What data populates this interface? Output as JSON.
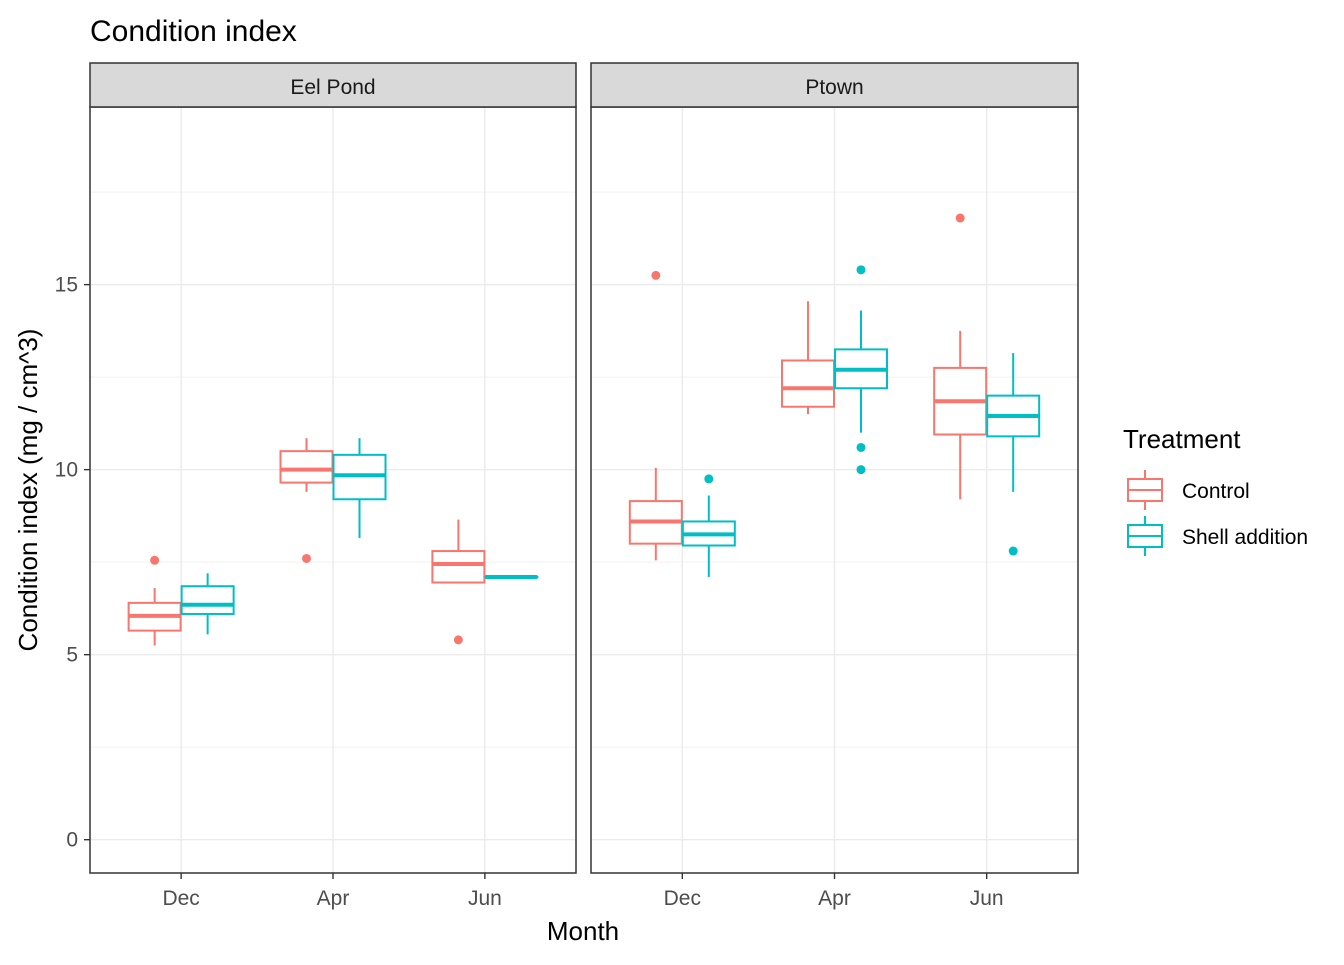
{
  "chart_data": {
    "type": "box",
    "title": "Condition index",
    "xlabel": "Month",
    "ylabel": "Condition index (mg / cm^3)",
    "ylim": [
      -0.9,
      19.8
    ],
    "yticks": [
      0,
      5,
      10,
      15
    ],
    "ytick_labels": [
      "0",
      "5",
      "10",
      "15"
    ],
    "categories": [
      "Dec",
      "Apr",
      "Jun"
    ],
    "grid": true,
    "legend": {
      "title": "Treatment",
      "position": "right",
      "entries": [
        {
          "label": "Control",
          "color": "#F8766D"
        },
        {
          "label": "Shell addition",
          "color": "#00BFC4"
        }
      ]
    },
    "panels": [
      {
        "label": "Eel Pond",
        "series": [
          {
            "name": "Control",
            "color": "#F8766D",
            "boxes": [
              {
                "category": "Dec",
                "lower": 5.25,
                "q1": 5.65,
                "median": 6.05,
                "q3": 6.4,
                "upper": 6.8,
                "outliers": [
                  7.55
                ]
              },
              {
                "category": "Apr",
                "lower": 9.4,
                "q1": 9.65,
                "median": 10.0,
                "q3": 10.5,
                "upper": 10.85,
                "outliers": [
                  7.6
                ]
              },
              {
                "category": "Jun",
                "lower": 6.95,
                "q1": 6.95,
                "median": 7.45,
                "q3": 7.8,
                "upper": 8.65,
                "outliers": [
                  5.4
                ]
              }
            ]
          },
          {
            "name": "Shell addition",
            "color": "#00BFC4",
            "boxes": [
              {
                "category": "Dec",
                "lower": 5.55,
                "q1": 6.1,
                "median": 6.35,
                "q3": 6.85,
                "upper": 7.2,
                "outliers": []
              },
              {
                "category": "Apr",
                "lower": 8.15,
                "q1": 9.2,
                "median": 9.85,
                "q3": 10.4,
                "upper": 10.85,
                "outliers": []
              },
              {
                "category": "Jun",
                "lower": 7.1,
                "q1": 7.1,
                "median": 7.1,
                "q3": 7.1,
                "upper": 7.1,
                "outliers": []
              }
            ]
          }
        ]
      },
      {
        "label": "Ptown",
        "series": [
          {
            "name": "Control",
            "color": "#F8766D",
            "boxes": [
              {
                "category": "Dec",
                "lower": 7.55,
                "q1": 8.0,
                "median": 8.6,
                "q3": 9.15,
                "upper": 10.05,
                "outliers": [
                  15.25
                ]
              },
              {
                "category": "Apr",
                "lower": 11.5,
                "q1": 11.7,
                "median": 12.2,
                "q3": 12.95,
                "upper": 14.55,
                "outliers": []
              },
              {
                "category": "Jun",
                "lower": 9.2,
                "q1": 10.95,
                "median": 11.85,
                "q3": 12.75,
                "upper": 13.75,
                "outliers": [
                  16.8
                ]
              }
            ]
          },
          {
            "name": "Shell addition",
            "color": "#00BFC4",
            "boxes": [
              {
                "category": "Dec",
                "lower": 7.1,
                "q1": 7.95,
                "median": 8.25,
                "q3": 8.6,
                "upper": 9.3,
                "outliers": [
                  9.75
                ]
              },
              {
                "category": "Apr",
                "lower": 11.0,
                "q1": 12.2,
                "median": 12.7,
                "q3": 13.25,
                "upper": 14.3,
                "outliers": [
                  15.4,
                  10.6,
                  10.0
                ]
              },
              {
                "category": "Jun",
                "lower": 9.4,
                "q1": 10.9,
                "median": 11.45,
                "q3": 12.0,
                "upper": 13.15,
                "outliers": [
                  7.8
                ]
              }
            ]
          }
        ]
      }
    ]
  }
}
